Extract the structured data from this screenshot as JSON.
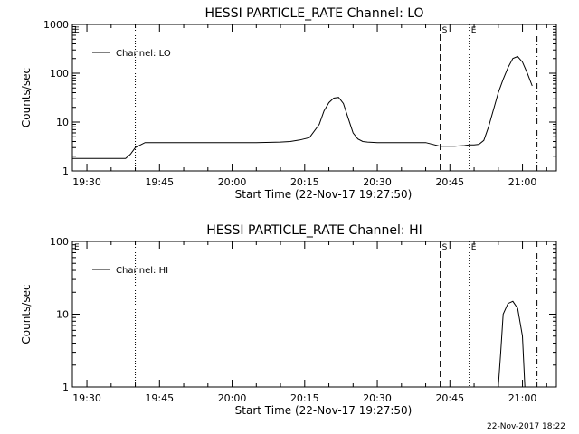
{
  "footer_stamp": "22-Nov-2017 18:22",
  "chart_data": [
    {
      "type": "line",
      "title": "HESSI PARTICLE_RATE Channel: LO",
      "xlabel": "Start Time (22-Nov-17 19:27:50)",
      "ylabel": "Counts/sec",
      "y_scale": "log",
      "ylim": [
        1,
        1000
      ],
      "xlim": [
        "19:27",
        "21:07"
      ],
      "x_ticks": [
        "19:30",
        "19:45",
        "20:00",
        "20:15",
        "20:30",
        "20:45",
        "21:00"
      ],
      "y_ticks": [
        "1",
        "10",
        "100",
        "1000"
      ],
      "legend": "top-left",
      "markers": [
        {
          "label": "E",
          "time": "19:27",
          "style": "dotted"
        },
        {
          "label": "",
          "time": "19:40",
          "style": "dotted"
        },
        {
          "label": "S",
          "time": "20:43",
          "style": "dashed"
        },
        {
          "label": "E",
          "time": "20:49",
          "style": "dotted"
        },
        {
          "label": "",
          "time": "21:03",
          "style": "dashdot"
        }
      ],
      "series": [
        {
          "name": "Channel: LO",
          "color": "#000000",
          "x": [
            "19:27",
            "19:29",
            "19:30",
            "19:32",
            "19:34",
            "19:36",
            "19:38",
            "19:39",
            "19:40",
            "19:42",
            "19:45",
            "19:50",
            "19:55",
            "20:00",
            "20:05",
            "20:10",
            "20:12",
            "20:14",
            "20:16",
            "20:18",
            "20:19",
            "20:20",
            "20:21",
            "20:22",
            "20:23",
            "20:24",
            "20:25",
            "20:26",
            "20:27",
            "20:28",
            "20:30",
            "20:35",
            "20:40",
            "20:43",
            "20:46",
            "20:48",
            "20:49",
            "20:50",
            "20:51",
            "20:52",
            "20:53",
            "20:54",
            "20:55",
            "20:56",
            "20:57",
            "20:58",
            "20:59",
            "21:00",
            "21:01",
            "21:02"
          ],
          "values": [
            1.8,
            1.8,
            1.8,
            1.8,
            1.8,
            1.8,
            1.8,
            2.2,
            3.0,
            3.8,
            3.8,
            3.8,
            3.8,
            3.8,
            3.8,
            3.9,
            4.0,
            4.3,
            4.8,
            9.0,
            17,
            25,
            31,
            32,
            24,
            12,
            6.0,
            4.5,
            4.0,
            3.9,
            3.8,
            3.8,
            3.8,
            3.2,
            3.2,
            3.3,
            3.4,
            3.4,
            3.5,
            4.2,
            8.0,
            18,
            40,
            75,
            130,
            200,
            220,
            170,
            100,
            55
          ]
        }
      ]
    },
    {
      "type": "line",
      "title": "HESSI PARTICLE_RATE Channel: HI",
      "xlabel": "Start Time (22-Nov-17 19:27:50)",
      "ylabel": "Counts/sec",
      "y_scale": "log",
      "ylim": [
        1,
        100
      ],
      "xlim": [
        "19:27",
        "21:07"
      ],
      "x_ticks": [
        "19:30",
        "19:45",
        "20:00",
        "20:15",
        "20:30",
        "20:45",
        "21:00"
      ],
      "y_ticks": [
        "1",
        "10",
        "100"
      ],
      "legend": "top-left",
      "markers": [
        {
          "label": "E",
          "time": "19:27",
          "style": "dotted"
        },
        {
          "label": "",
          "time": "19:40",
          "style": "dotted"
        },
        {
          "label": "S",
          "time": "20:43",
          "style": "dashed"
        },
        {
          "label": "E",
          "time": "20:49",
          "style": "dotted"
        },
        {
          "label": "",
          "time": "21:03",
          "style": "dashdot"
        }
      ],
      "series": [
        {
          "name": "Channel: HI",
          "color": "#000000",
          "x": [
            "20:55",
            "20:55.5",
            "20:56",
            "20:57",
            "20:58",
            "20:59",
            "21:00",
            "21:00.5"
          ],
          "values": [
            1.0,
            3.0,
            10,
            14,
            15,
            12,
            5,
            1.0
          ]
        }
      ]
    }
  ]
}
